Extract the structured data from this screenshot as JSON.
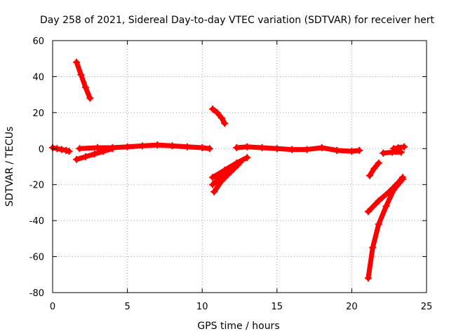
{
  "chart_data": {
    "type": "scatter",
    "title": "Day 258 of 2021, Sidereal Day-to-day VTEC variation (SDTVAR) for receiver hert",
    "xlabel": "GPS time / hours",
    "ylabel": "SDTVAR / TECUs",
    "xlim": [
      0,
      25
    ],
    "ylim": [
      -80,
      60
    ],
    "xticks": [
      0,
      5,
      10,
      15,
      20,
      25
    ],
    "yticks": [
      -80,
      -60,
      -40,
      -20,
      0,
      20,
      40,
      60
    ],
    "grid": true,
    "legend": "none",
    "marker": "plus",
    "color": "#ff0000",
    "series": [
      {
        "x": [
          0.0,
          0.3,
          0.6,
          0.9,
          1.1
        ],
        "y": [
          0.5,
          0.0,
          -0.5,
          -1.0,
          -1.5
        ]
      },
      {
        "x": [
          1.6,
          1.9,
          2.2,
          2.5
        ],
        "y": [
          48,
          41,
          34,
          28
        ]
      },
      {
        "x": [
          1.6,
          2.2,
          2.8,
          3.4,
          4.0
        ],
        "y": [
          -6,
          -4.5,
          -3,
          -1.5,
          0
        ]
      },
      {
        "x": [
          1.8,
          3.0,
          4.0,
          5.0,
          6.0,
          7.0,
          8.0,
          9.0,
          10.0,
          10.5
        ],
        "y": [
          0,
          0.5,
          0.5,
          1,
          1.5,
          2,
          1.5,
          1,
          0.5,
          0
        ]
      },
      {
        "x": [
          10.7,
          11.0,
          11.3,
          11.5
        ],
        "y": [
          22,
          20,
          17,
          14
        ]
      },
      {
        "x": [
          10.7,
          11.5,
          12.3,
          13.0
        ],
        "y": [
          -16,
          -12,
          -8,
          -5
        ]
      },
      {
        "x": [
          10.7,
          11.3,
          11.9,
          12.5
        ],
        "y": [
          -20,
          -15,
          -11,
          -8
        ]
      },
      {
        "x": [
          10.8,
          11.3,
          11.9,
          12.4
        ],
        "y": [
          -24,
          -18,
          -13,
          -9
        ]
      },
      {
        "x": [
          12.3,
          13.0,
          14.0,
          15.0,
          16.0,
          17.0,
          18.0,
          19.0,
          20.0,
          20.5
        ],
        "y": [
          0.5,
          1,
          0.5,
          0,
          -0.5,
          -0.5,
          0.5,
          -1,
          -1.5,
          -1
        ]
      },
      {
        "x": [
          21.2,
          21.5,
          21.8
        ],
        "y": [
          -15,
          -11,
          -8
        ]
      },
      {
        "x": [
          21.1,
          21.8,
          22.5,
          23.1,
          23.4
        ],
        "y": [
          -35,
          -29,
          -24,
          -19,
          -16
        ]
      },
      {
        "x": [
          21.1,
          21.4,
          21.8,
          22.3,
          22.8,
          23.4
        ],
        "y": [
          -72,
          -55,
          -42,
          -32,
          -23,
          -17
        ]
      },
      {
        "x": [
          22.1,
          22.7,
          23.3
        ],
        "y": [
          -2.5,
          -2,
          -2
        ]
      },
      {
        "x": [
          22.8,
          23.1,
          23.5
        ],
        "y": [
          0,
          0.5,
          1
        ]
      }
    ]
  }
}
